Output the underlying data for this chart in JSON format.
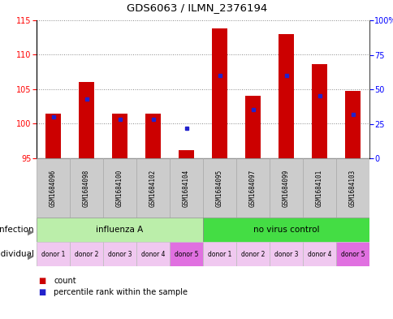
{
  "title": "GDS6063 / ILMN_2376194",
  "samples": [
    "GSM1684096",
    "GSM1684098",
    "GSM1684100",
    "GSM1684102",
    "GSM1684104",
    "GSM1684095",
    "GSM1684097",
    "GSM1684099",
    "GSM1684101",
    "GSM1684103"
  ],
  "counts": [
    101.5,
    106.0,
    101.5,
    101.5,
    96.2,
    113.8,
    104.0,
    113.0,
    108.7,
    104.8
  ],
  "percentiles": [
    30,
    43,
    28,
    28,
    22,
    60,
    35,
    60,
    45,
    32
  ],
  "ylim_left": [
    95,
    115
  ],
  "ylim_right": [
    0,
    100
  ],
  "yticks_left": [
    95,
    100,
    105,
    110,
    115
  ],
  "yticks_right": [
    0,
    25,
    50,
    75,
    100
  ],
  "bar_color": "#cc0000",
  "dot_color": "#2222cc",
  "bar_baseline": 95,
  "infection_groups": [
    {
      "label": "influenza A",
      "start": 0,
      "end": 5,
      "color": "#bbeeaa"
    },
    {
      "label": "no virus control",
      "start": 5,
      "end": 10,
      "color": "#44dd44"
    }
  ],
  "individual_labels": [
    "donor 1",
    "donor 2",
    "donor 3",
    "donor 4",
    "donor 5",
    "donor 1",
    "donor 2",
    "donor 3",
    "donor 4",
    "donor 5"
  ],
  "individual_colors": [
    "#f0c8f0",
    "#f0c8f0",
    "#f0c8f0",
    "#f0c8f0",
    "#e070e0",
    "#f0c8f0",
    "#f0c8f0",
    "#f0c8f0",
    "#f0c8f0",
    "#e070e0"
  ],
  "bg_color": "#ffffff",
  "plot_bg": "#ffffff",
  "grid_color": "#888888",
  "sample_box_color": "#cccccc",
  "sample_box_edge": "#aaaaaa"
}
